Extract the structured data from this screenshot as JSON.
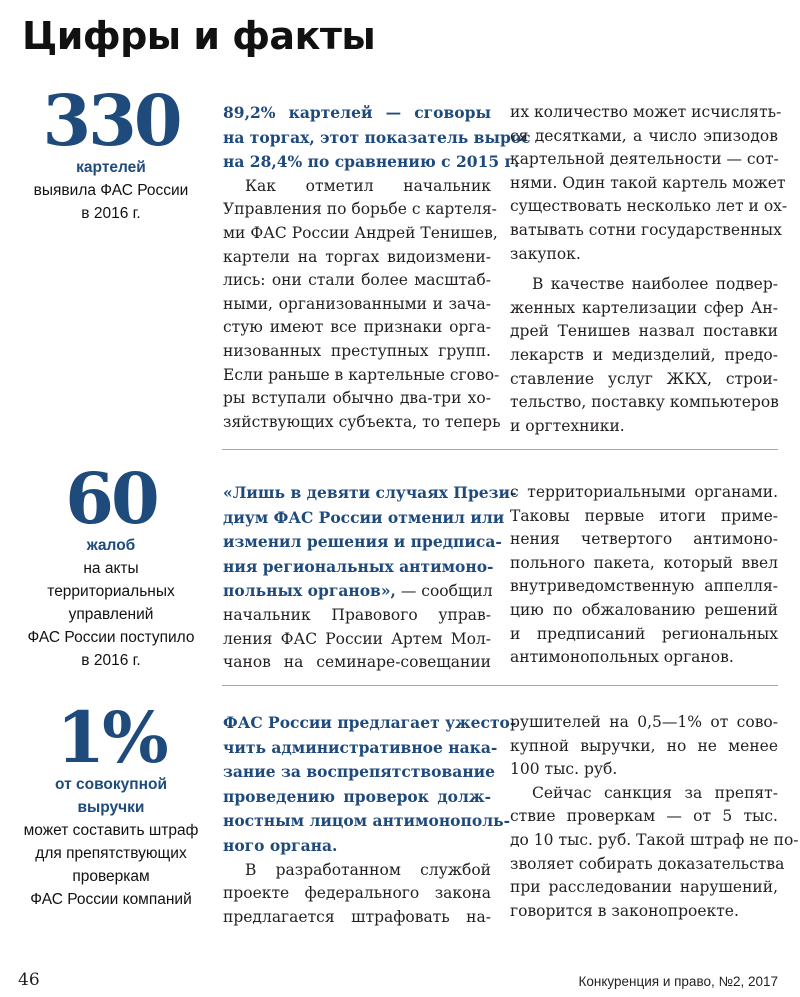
{
  "title": "Цифры и факты",
  "colors": {
    "accent": "#1f4a7c",
    "divider": "#9aa9c2"
  },
  "sections": [
    {
      "stat": {
        "number": "330",
        "label": [
          "картелей"
        ],
        "desc": [
          "выявила ФАС России",
          "в 2016 г."
        ]
      },
      "columns": [
        [
          {
            "blue": "89,2% картелей — сговоры"
          },
          {
            "blue": "на торгах, этот показатель вырос"
          },
          {
            "blue": "на 28,4% по сравнению с 2015 г.",
            "last": true
          },
          {
            "text": "Как отметил начальник",
            "indent": true
          },
          {
            "text": "Управления по борьбе с картеля-"
          },
          {
            "text": "ми ФАС России Андрей Тенишев,"
          },
          {
            "text": "картели на торгах видоизмени-"
          },
          {
            "text": "лись: они стали более масштаб-"
          },
          {
            "text": "ными, организованными и зача-"
          },
          {
            "text": "стую имеют все признаки орга-"
          },
          {
            "text": "низованных преступных групп."
          },
          {
            "text": "Если раньше в картельные сгово-"
          },
          {
            "text": "ры вступали обычно два-три хо-"
          },
          {
            "text": "зяйствующих субъекта, то теперь"
          }
        ],
        [
          {
            "text": "их количество может исчислять-"
          },
          {
            "text": "ся десятками, а число эпизодов"
          },
          {
            "text": "картельной деятельности — сот-"
          },
          {
            "text": "нями. Один такой картель может"
          },
          {
            "text": "существовать несколько лет и ох-"
          },
          {
            "text": "ватывать сотни государственных"
          },
          {
            "text": "закупок.",
            "last": true
          },
          {
            "text": "В качестве наиболее подвер-",
            "indent": true,
            "gap": true
          },
          {
            "text": "женных картелизации сфер Ан-"
          },
          {
            "text": "дрей Тенишев назвал поставки"
          },
          {
            "text": "лекарств и медизделий, предо-"
          },
          {
            "text": "ставление услуг ЖКХ, строи-"
          },
          {
            "text": "тельство, поставку компьютеров"
          },
          {
            "text": "и оргтехники.",
            "last": true
          }
        ]
      ]
    },
    {
      "stat": {
        "number": "60",
        "label": [
          "жалоб"
        ],
        "desc": [
          "на акты",
          "территориальных",
          "управлений",
          "ФАС России поступило",
          "в 2016 г."
        ]
      },
      "columns": [
        [
          {
            "blue": "«Лишь в девяти случаях Прези-"
          },
          {
            "blue": "диум ФАС России отменил или"
          },
          {
            "blue": "изменил решения и предписа-"
          },
          {
            "blue": "ния региональных антимоно-"
          },
          {
            "blue": "польных органов»,",
            "text": " — сообщил"
          },
          {
            "text": "начальник Правового управ-"
          },
          {
            "text": "ления ФАС России Артем Мол-"
          },
          {
            "text": "чанов на семинаре-совещании"
          }
        ],
        [
          {
            "text": "с территориальными органами."
          },
          {
            "text": "Таковы первые итоги приме-"
          },
          {
            "text": "нения четвертого антимоно-"
          },
          {
            "text": "польного пакета, который ввел"
          },
          {
            "text": "внутриведомственную аппелля-"
          },
          {
            "text": "цию по обжалованию решений"
          },
          {
            "text": "и предписаний региональных"
          },
          {
            "text": "антимонопольных органов.",
            "last": true
          }
        ]
      ]
    },
    {
      "stat": {
        "number": "1%",
        "label": [
          "от совокупной",
          "выручки"
        ],
        "desc": [
          "может составить штраф",
          "для препятствующих",
          "проверкам",
          "ФАС России компаний"
        ]
      },
      "columns": [
        [
          {
            "blue": "ФАС России предлагает ужесто-"
          },
          {
            "blue": "чить административное нака-"
          },
          {
            "blue": "зание за воспрепятствование"
          },
          {
            "blue": "проведению проверок долж-"
          },
          {
            "blue": "ностным лицом антимонополь-"
          },
          {
            "blue": "ного органа.",
            "last": true
          },
          {
            "text": "В разработанном службой",
            "indent": true
          },
          {
            "text": "проекте федерального закона"
          },
          {
            "text": "предлагается штрафовать на-"
          }
        ],
        [
          {
            "text": "рушителей на 0,5—1% от сово-"
          },
          {
            "text": "купной выручки, но не менее"
          },
          {
            "text": "100 тыс. руб.",
            "last": true
          },
          {
            "text": "Сейчас санкция за препят-",
            "indent": true
          },
          {
            "text": "ствие проверкам — от 5 тыс."
          },
          {
            "text": "до 10 тыс. руб. Такой штраф не по-"
          },
          {
            "text": "зволяет собирать доказательства"
          },
          {
            "text": "при расследовании нарушений,"
          },
          {
            "text": "говорится в законопроекте.",
            "last": true
          }
        ]
      ]
    }
  ],
  "footer": {
    "page_number": "46",
    "journal": "Конкуренция и право, №2, 2017"
  }
}
